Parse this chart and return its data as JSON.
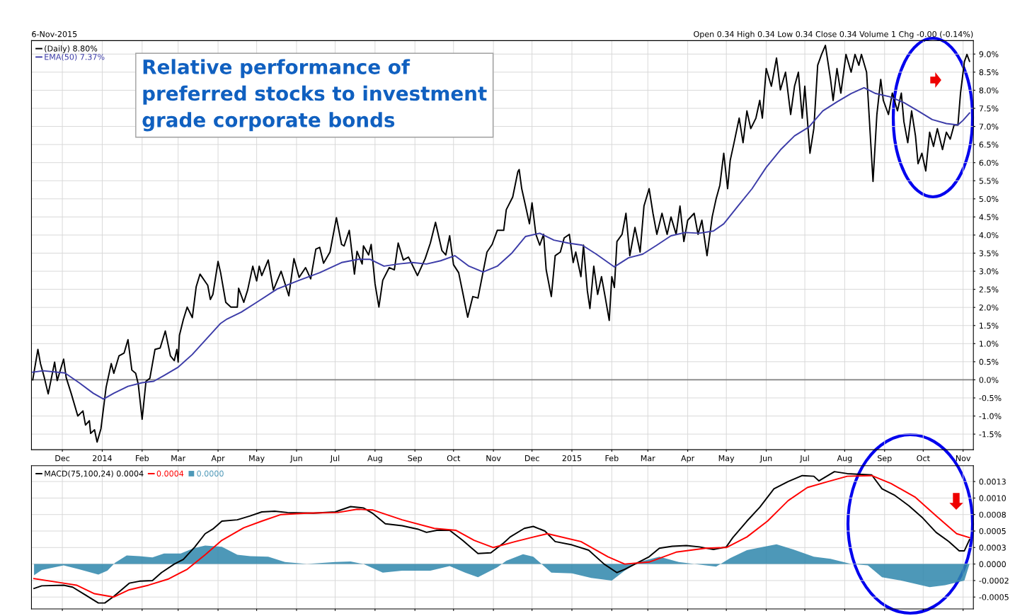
{
  "chart_data": [
    {
      "type": "line",
      "subtitle": "6-Nov-2015",
      "annotations": [
        "Relative performance of\npreferred stocks to investment\ngrade corporate bonds",
        "Open 0.34 High 0.34 Low 0.34 Close 0.34 Volume 1 Chg -0.00 (-0.14%)"
      ],
      "xlim": [
        "2013-11-07",
        "2015-11-09"
      ],
      "xticks": [
        {
          "value": "2013-12-01",
          "label": "Dec"
        },
        {
          "value": "2014-01-01",
          "label": "2014"
        },
        {
          "value": "2014-02-01",
          "label": "Feb"
        },
        {
          "value": "2014-03-01",
          "label": "Mar"
        },
        {
          "value": "2014-04-01",
          "label": "Apr"
        },
        {
          "value": "2014-05-01",
          "label": "May"
        },
        {
          "value": "2014-06-01",
          "label": "Jun"
        },
        {
          "value": "2014-07-01",
          "label": "Jul"
        },
        {
          "value": "2014-08-01",
          "label": "Aug"
        },
        {
          "value": "2014-09-01",
          "label": "Sep"
        },
        {
          "value": "2014-10-01",
          "label": "Oct"
        },
        {
          "value": "2014-11-01",
          "label": "Nov"
        },
        {
          "value": "2014-12-01",
          "label": "Dec"
        },
        {
          "value": "2015-01-01",
          "label": "2015"
        },
        {
          "value": "2015-02-01",
          "label": "Feb"
        },
        {
          "value": "2015-03-01",
          "label": "Mar"
        },
        {
          "value": "2015-04-01",
          "label": "Apr"
        },
        {
          "value": "2015-05-01",
          "label": "May"
        },
        {
          "value": "2015-06-01",
          "label": "Jun"
        },
        {
          "value": "2015-07-01",
          "label": "Jul"
        },
        {
          "value": "2015-08-01",
          "label": "Aug"
        },
        {
          "value": "2015-09-01",
          "label": "Sep"
        },
        {
          "value": "2015-10-01",
          "label": "Oct"
        },
        {
          "value": "2015-11-01",
          "label": "Nov"
        }
      ],
      "ylim": [
        -1.93,
        9.37
      ],
      "yticks": [
        {
          "value": -1.5,
          "label": "-1.5%"
        },
        {
          "value": -1.0,
          "label": "-1.0%"
        },
        {
          "value": -0.5,
          "label": "-0.5%"
        },
        {
          "value": 0.0,
          "label": "0.0%"
        },
        {
          "value": 0.5,
          "label": "0.5%"
        },
        {
          "value": 1.0,
          "label": "1.0%"
        },
        {
          "value": 1.5,
          "label": "1.5%"
        },
        {
          "value": 2.0,
          "label": "2.0%"
        },
        {
          "value": 2.5,
          "label": "2.5%"
        },
        {
          "value": 3.0,
          "label": "3.0%"
        },
        {
          "value": 3.5,
          "label": "3.5%"
        },
        {
          "value": 4.0,
          "label": "4.0%"
        },
        {
          "value": 4.5,
          "label": "4.5%"
        },
        {
          "value": 5.0,
          "label": "5.0%"
        },
        {
          "value": 5.5,
          "label": "5.5%"
        },
        {
          "value": 6.0,
          "label": "6.0%"
        },
        {
          "value": 6.5,
          "label": "6.5%"
        },
        {
          "value": 7.0,
          "label": "7.0%"
        },
        {
          "value": 7.5,
          "label": "7.5%"
        },
        {
          "value": 8.0,
          "label": "8.0%"
        },
        {
          "value": 8.5,
          "label": "8.5%"
        },
        {
          "value": 9.0,
          "label": "9.0%"
        }
      ],
      "grid": true,
      "legend": "top left",
      "ref_lines": [
        {
          "axis": "y",
          "value": 0,
          "color": "#808080"
        }
      ],
      "series": [
        {
          "name": "(Daily) 8.80%",
          "color": "#000000",
          "x": [
            "2013-11-08",
            "2013-11-12",
            "2013-11-14",
            "2013-11-17",
            "2013-11-20",
            "2013-11-25",
            "2013-11-27",
            "2013-12-02",
            "2013-12-04",
            "2013-12-08",
            "2013-12-13",
            "2013-12-17",
            "2013-12-19",
            "2013-12-22",
            "2013-12-23",
            "2013-12-26",
            "2013-12-28",
            "2013-12-31",
            "2014-01-04",
            "2014-01-08",
            "2014-01-10",
            "2014-01-14",
            "2014-01-18",
            "2014-01-21",
            "2014-01-24",
            "2014-01-27",
            "2014-01-29",
            "2014-02-01",
            "2014-02-04",
            "2014-02-07",
            "2014-02-11",
            "2014-02-15",
            "2014-02-19",
            "2014-02-23",
            "2014-02-26",
            "2014-02-28",
            "2014-03-01",
            "2014-03-02",
            "2014-03-05",
            "2014-03-08",
            "2014-03-12",
            "2014-03-15",
            "2014-03-18",
            "2014-03-24",
            "2014-03-26",
            "2014-03-28",
            "2014-04-01",
            "2014-04-03",
            "2014-04-07",
            "2014-04-11",
            "2014-04-16",
            "2014-04-17",
            "2014-04-21",
            "2014-04-24",
            "2014-04-28",
            "2014-05-01",
            "2014-05-03",
            "2014-05-05",
            "2014-05-10",
            "2014-05-14",
            "2014-05-20",
            "2014-05-26",
            "2014-05-30",
            "2014-06-03",
            "2014-06-08",
            "2014-06-12",
            "2014-06-16",
            "2014-06-19",
            "2014-06-22",
            "2014-06-27",
            "2014-07-02",
            "2014-07-06",
            "2014-07-08",
            "2014-07-12",
            "2014-07-16",
            "2014-07-18",
            "2014-07-22",
            "2014-07-23",
            "2014-07-27",
            "2014-07-29",
            "2014-08-01",
            "2014-08-04",
            "2014-08-07",
            "2014-08-12",
            "2014-08-16",
            "2014-08-19",
            "2014-08-23",
            "2014-08-27",
            "2014-09-03",
            "2014-09-09",
            "2014-09-13",
            "2014-09-17",
            "2014-09-22",
            "2014-09-25",
            "2014-09-28",
            "2014-10-01",
            "2014-10-05",
            "2014-10-08",
            "2014-10-12",
            "2014-10-16",
            "2014-10-20",
            "2014-10-27",
            "2014-10-31",
            "2014-11-04",
            "2014-11-09",
            "2014-11-11",
            "2014-11-16",
            "2014-11-20",
            "2014-11-21",
            "2014-11-23",
            "2014-11-26",
            "2014-11-29",
            "2014-12-01",
            "2014-12-04",
            "2014-12-07",
            "2014-12-10",
            "2014-12-12",
            "2014-12-16",
            "2014-12-19",
            "2014-12-23",
            "2014-12-26",
            "2014-12-30",
            "2015-01-02",
            "2015-01-04",
            "2015-01-08",
            "2015-01-10",
            "2015-01-13",
            "2015-01-15",
            "2015-01-18",
            "2015-01-21",
            "2015-01-24",
            "2015-01-27",
            "2015-01-30",
            "2015-02-01",
            "2015-02-03",
            "2015-02-05",
            "2015-02-09",
            "2015-02-12",
            "2015-02-15",
            "2015-02-19",
            "2015-02-23",
            "2015-02-26",
            "2015-03-02",
            "2015-03-05",
            "2015-03-08",
            "2015-03-12",
            "2015-03-16",
            "2015-03-19",
            "2015-03-23",
            "2015-03-26",
            "2015-03-29",
            "2015-04-01",
            "2015-04-06",
            "2015-04-09",
            "2015-04-12",
            "2015-04-16",
            "2015-04-20",
            "2015-04-23",
            "2015-04-26",
            "2015-04-29",
            "2015-05-02",
            "2015-05-04",
            "2015-05-07",
            "2015-05-11",
            "2015-05-14",
            "2015-05-17",
            "2015-05-20",
            "2015-05-24",
            "2015-05-27",
            "2015-05-29",
            "2015-06-01",
            "2015-06-05",
            "2015-06-09",
            "2015-06-12",
            "2015-06-16",
            "2015-06-20",
            "2015-06-23",
            "2015-06-26",
            "2015-06-29",
            "2015-07-01",
            "2015-07-05",
            "2015-07-08",
            "2015-07-11",
            "2015-07-14",
            "2015-07-17",
            "2015-07-21",
            "2015-07-23",
            "2015-07-26",
            "2015-07-29",
            "2015-08-02",
            "2015-08-06",
            "2015-08-09",
            "2015-08-12",
            "2015-08-14",
            "2015-08-18",
            "2015-08-23",
            "2015-08-26",
            "2015-08-29",
            "2015-08-31",
            "2015-09-04",
            "2015-09-07",
            "2015-09-11",
            "2015-09-14",
            "2015-09-16",
            "2015-09-19",
            "2015-09-22",
            "2015-09-25",
            "2015-09-27",
            "2015-09-30",
            "2015-10-03",
            "2015-10-06",
            "2015-10-09",
            "2015-10-12",
            "2015-10-16",
            "2015-10-19",
            "2015-10-22",
            "2015-10-25",
            "2015-10-28",
            "2015-10-30",
            "2015-11-02",
            "2015-11-04",
            "2015-11-06"
          ],
          "values": [
            0.0,
            0.84,
            0.45,
            0.06,
            -0.39,
            0.49,
            -0.02,
            0.57,
            0.06,
            -0.39,
            -1.0,
            -0.86,
            -1.25,
            -1.13,
            -1.48,
            -1.38,
            -1.72,
            -1.35,
            -0.21,
            0.45,
            0.18,
            0.66,
            0.74,
            1.11,
            0.27,
            0.18,
            -0.12,
            -1.09,
            -0.04,
            0.04,
            0.84,
            0.88,
            1.35,
            0.66,
            0.53,
            0.84,
            0.49,
            1.23,
            1.66,
            2.01,
            1.72,
            2.57,
            2.92,
            2.61,
            2.22,
            2.36,
            3.27,
            2.96,
            2.14,
            2.01,
            2.01,
            2.53,
            2.14,
            2.48,
            3.14,
            2.73,
            3.14,
            2.88,
            3.31,
            2.48,
            3.0,
            2.32,
            3.35,
            2.83,
            3.1,
            2.79,
            3.61,
            3.66,
            3.22,
            3.53,
            4.48,
            3.74,
            3.7,
            4.13,
            2.92,
            3.55,
            3.2,
            3.7,
            3.45,
            3.74,
            2.65,
            2.01,
            2.75,
            3.1,
            3.04,
            3.78,
            3.31,
            3.39,
            2.88,
            3.35,
            3.78,
            4.35,
            3.57,
            3.45,
            3.98,
            3.18,
            2.96,
            2.44,
            1.73,
            2.3,
            2.26,
            3.53,
            3.74,
            4.13,
            4.13,
            4.7,
            5.05,
            5.75,
            5.81,
            5.28,
            4.8,
            4.31,
            4.89,
            4.02,
            3.72,
            4.02,
            3.04,
            2.3,
            3.43,
            3.53,
            3.92,
            4.02,
            3.24,
            3.53,
            2.85,
            3.72,
            2.46,
            1.97,
            3.14,
            2.36,
            2.85,
            2.26,
            1.64,
            2.85,
            2.55,
            3.82,
            4.02,
            4.6,
            3.43,
            4.21,
            3.53,
            4.8,
            5.28,
            4.6,
            4.02,
            4.6,
            4.02,
            4.5,
            4.02,
            4.8,
            3.82,
            4.41,
            4.6,
            4.02,
            4.41,
            3.43,
            4.5,
            4.99,
            5.38,
            6.26,
            5.28,
            6.06,
            6.55,
            7.23,
            6.55,
            7.43,
            6.94,
            7.23,
            7.72,
            7.23,
            8.6,
            8.11,
            8.89,
            8.01,
            8.5,
            7.33,
            8.11,
            8.5,
            7.23,
            8.11,
            6.26,
            6.94,
            8.69,
            8.99,
            9.24,
            8.3,
            7.72,
            8.6,
            7.92,
            8.99,
            8.5,
            8.99,
            8.69,
            8.99,
            8.5,
            5.48,
            7.33,
            8.3,
            7.72,
            7.33,
            7.92,
            7.43,
            7.92,
            7.13,
            6.55,
            7.43,
            6.74,
            5.97,
            6.26,
            5.77,
            6.84,
            6.45,
            6.94,
            6.36,
            6.84,
            6.65,
            7.04,
            7.04,
            7.92,
            8.79,
            8.99,
            8.8
          ]
        },
        {
          "name": "EMA(50) 7.37%",
          "color": "#3c3ca8",
          "x": [
            "2013-11-08",
            "2013-11-16",
            "2013-12-03",
            "2013-12-14",
            "2013-12-25",
            "2014-01-02",
            "2014-01-10",
            "2014-01-21",
            "2014-02-01",
            "2014-02-10",
            "2014-02-18",
            "2014-03-01",
            "2014-03-12",
            "2014-03-23",
            "2014-04-03",
            "2014-04-08",
            "2014-04-19",
            "2014-05-01",
            "2014-05-17",
            "2014-06-03",
            "2014-06-19",
            "2014-07-06",
            "2014-07-19",
            "2014-07-28",
            "2014-08-08",
            "2014-08-19",
            "2014-08-30",
            "2014-09-10",
            "2014-09-21",
            "2014-10-02",
            "2014-10-13",
            "2014-10-24",
            "2014-11-04",
            "2014-11-15",
            "2014-11-26",
            "2014-12-07",
            "2014-12-18",
            "2014-12-29",
            "2015-01-09",
            "2015-01-20",
            "2015-02-03",
            "2015-02-14",
            "2015-02-25",
            "2015-03-08",
            "2015-03-19",
            "2015-03-30",
            "2015-04-10",
            "2015-04-21",
            "2015-04-29",
            "2015-05-10",
            "2015-05-21",
            "2015-06-01",
            "2015-06-12",
            "2015-06-23",
            "2015-07-04",
            "2015-07-15",
            "2015-07-26",
            "2015-08-06",
            "2015-08-16",
            "2015-08-25",
            "2015-09-05",
            "2015-09-16",
            "2015-09-27",
            "2015-10-08",
            "2015-10-19",
            "2015-10-28",
            "2015-11-01",
            "2015-11-06"
          ],
          "values": [
            0.21,
            0.25,
            0.19,
            -0.08,
            -0.37,
            -0.53,
            -0.37,
            -0.18,
            -0.08,
            -0.04,
            0.12,
            0.35,
            0.7,
            1.13,
            1.56,
            1.68,
            1.87,
            2.14,
            2.51,
            2.75,
            2.96,
            3.24,
            3.33,
            3.33,
            3.14,
            3.2,
            3.24,
            3.2,
            3.29,
            3.43,
            3.14,
            2.98,
            3.14,
            3.49,
            3.96,
            4.05,
            3.86,
            3.78,
            3.72,
            3.47,
            3.12,
            3.37,
            3.47,
            3.72,
            3.98,
            4.07,
            4.05,
            4.11,
            4.31,
            4.8,
            5.28,
            5.87,
            6.35,
            6.74,
            6.98,
            7.43,
            7.68,
            7.91,
            8.07,
            7.91,
            7.82,
            7.66,
            7.43,
            7.19,
            7.08,
            7.04,
            7.17,
            7.37
          ]
        }
      ]
    },
    {
      "type": "line",
      "tick_labels": "y",
      "grid": true,
      "legend": "top left",
      "xlim": [
        "2013-11-07",
        "2015-11-09"
      ],
      "xticks": [
        {
          "value": "2013-12-01",
          "label": null
        },
        {
          "value": "2014-01-01",
          "label": null
        },
        {
          "value": "2014-02-01",
          "label": null
        },
        {
          "value": "2014-03-01",
          "label": null
        },
        {
          "value": "2014-04-01",
          "label": null
        },
        {
          "value": "2014-05-01",
          "label": null
        },
        {
          "value": "2014-06-01",
          "label": null
        },
        {
          "value": "2014-07-01",
          "label": null
        },
        {
          "value": "2014-08-01",
          "label": null
        },
        {
          "value": "2014-09-01",
          "label": null
        },
        {
          "value": "2014-10-01",
          "label": null
        },
        {
          "value": "2014-11-01",
          "label": null
        },
        {
          "value": "2014-12-01",
          "label": null
        },
        {
          "value": "2015-01-01",
          "label": null
        },
        {
          "value": "2015-02-01",
          "label": null
        },
        {
          "value": "2015-03-01",
          "label": null
        },
        {
          "value": "2015-04-01",
          "label": null
        },
        {
          "value": "2015-05-01",
          "label": null
        },
        {
          "value": "2015-06-01",
          "label": null
        },
        {
          "value": "2015-07-01",
          "label": null
        },
        {
          "value": "2015-08-01",
          "label": null
        },
        {
          "value": "2015-09-01",
          "label": null
        },
        {
          "value": "2015-10-01",
          "label": null
        },
        {
          "value": "2015-11-01",
          "label": null
        }
      ],
      "ylim": [
        -0.00068,
        0.00149
      ],
      "yticks": [
        {
          "value": -0.0005,
          "label": "-0.0005"
        },
        {
          "value": -0.00025,
          "label": "-0.0002"
        },
        {
          "value": 0,
          "label": "0.0000"
        },
        {
          "value": 0.00025,
          "label": "0.0003"
        },
        {
          "value": 0.0005,
          "label": "0.0005"
        },
        {
          "value": 0.00075,
          "label": "0.0008"
        },
        {
          "value": 0.001,
          "label": "0.0010"
        },
        {
          "value": 0.00125,
          "label": "0.0013"
        }
      ],
      "series": [
        {
          "name": "0.0000",
          "type": "area",
          "color": "#2e86ab",
          "x": [
            "2013-11-09",
            "2013-11-15",
            "2013-12-02",
            "2013-12-14",
            "2013-12-29",
            "2014-01-05",
            "2014-01-11",
            "2014-01-20",
            "2014-01-30",
            "2014-02-09",
            "2014-02-18",
            "2014-03-03",
            "2014-03-13",
            "2014-03-22",
            "2014-04-04",
            "2014-04-16",
            "2014-04-26",
            "2014-05-10",
            "2014-05-23",
            "2014-06-09",
            "2014-07-01",
            "2014-07-13",
            "2014-07-23",
            "2014-08-07",
            "2014-08-22",
            "2014-09-13",
            "2014-09-28",
            "2014-10-10",
            "2014-10-20",
            "2014-11-04",
            "2014-11-11",
            "2014-11-24",
            "2014-12-02",
            "2014-12-16",
            "2015-01-01",
            "2015-01-16",
            "2015-02-01",
            "2015-02-11",
            "2015-02-22",
            "2015-03-10",
            "2015-03-25",
            "2015-04-15",
            "2015-04-23",
            "2015-05-04",
            "2015-05-17",
            "2015-05-30",
            "2015-06-09",
            "2015-06-22",
            "2015-07-08",
            "2015-07-21",
            "2015-08-06",
            "2015-08-19",
            "2015-08-30",
            "2015-09-14",
            "2015-10-06",
            "2015-10-18",
            "2015-11-02",
            "2015-11-06"
          ],
          "values": [
            -0.00017,
            -9e-05,
            -2e-05,
            -8e-05,
            -0.00016,
            -0.0001,
            2e-05,
            0.00013,
            0.00012,
            0.0001,
            0.00016,
            0.00016,
            0.00024,
            0.00028,
            0.00026,
            0.00014,
            0.00012,
            0.00011,
            3e-05,
            0.0,
            3e-05,
            4e-05,
            0.0,
            -0.00013,
            -0.0001,
            -0.0001,
            -3e-05,
            -0.00013,
            -0.0002,
            -5e-05,
            5e-05,
            0.00015,
            0.00011,
            -0.00013,
            -0.00014,
            -0.00021,
            -0.00025,
            -0.0001,
            3e-05,
            0.00011,
            3e-05,
            -2e-05,
            -4e-05,
            9e-05,
            0.00021,
            0.00026,
            0.0003,
            0.00022,
            0.00011,
            8e-05,
            0.0,
            -2e-05,
            -0.0002,
            -0.00025,
            -0.00035,
            -0.00032,
            -0.00025,
            0.0
          ]
        },
        {
          "name": "MACD(75,100,24) 0.0004",
          "color": "#000000",
          "x": [
            "2013-11-09",
            "2013-11-15",
            "2013-12-02",
            "2013-12-09",
            "2013-12-19",
            "2013-12-29",
            "2014-01-03",
            "2014-01-10",
            "2014-01-22",
            "2014-01-30",
            "2014-02-09",
            "2014-02-16",
            "2014-02-26",
            "2014-03-05",
            "2014-03-14",
            "2014-03-22",
            "2014-03-28",
            "2014-04-04",
            "2014-04-16",
            "2014-04-26",
            "2014-05-05",
            "2014-05-15",
            "2014-05-25",
            "2014-06-14",
            "2014-07-01",
            "2014-07-13",
            "2014-07-23",
            "2014-07-30",
            "2014-08-09",
            "2014-08-22",
            "2014-09-03",
            "2014-09-10",
            "2014-09-18",
            "2014-09-28",
            "2014-10-08",
            "2014-10-20",
            "2014-10-30",
            "2014-11-09",
            "2014-11-14",
            "2014-11-25",
            "2014-12-02",
            "2014-12-11",
            "2014-12-19",
            "2015-01-01",
            "2015-01-14",
            "2015-01-26",
            "2015-02-05",
            "2015-02-11",
            "2015-02-22",
            "2015-03-02",
            "2015-03-10",
            "2015-03-20",
            "2015-03-31",
            "2015-04-10",
            "2015-04-21",
            "2015-05-01",
            "2015-05-06",
            "2015-05-17",
            "2015-05-27",
            "2015-06-07",
            "2015-06-18",
            "2015-06-29",
            "2015-07-08",
            "2015-07-12",
            "2015-07-24",
            "2015-08-03",
            "2015-08-22",
            "2015-08-30",
            "2015-09-09",
            "2015-09-20",
            "2015-09-30",
            "2015-10-11",
            "2015-10-21",
            "2015-10-29",
            "2015-11-02",
            "2015-11-06"
          ],
          "values": [
            -0.00037,
            -0.00033,
            -0.00032,
            -0.00035,
            -0.00047,
            -0.00059,
            -0.00059,
            -0.00049,
            -0.00029,
            -0.00026,
            -0.00025,
            -0.00013,
            0.0,
            7e-05,
            0.00026,
            0.00046,
            0.00053,
            0.00065,
            0.00067,
            0.00073,
            0.00079,
            0.0008,
            0.00078,
            0.00077,
            0.00079,
            0.00087,
            0.00085,
            0.00077,
            0.00061,
            0.00058,
            0.00053,
            0.00048,
            0.00051,
            0.00051,
            0.00036,
            0.00016,
            0.00017,
            0.00032,
            0.00041,
            0.00054,
            0.00057,
            0.0005,
            0.00034,
            0.00029,
            0.00021,
            0.0,
            -0.00013,
            -8e-05,
            3e-05,
            0.00011,
            0.00024,
            0.00027,
            0.00028,
            0.00026,
            0.00022,
            0.00026,
            0.0004,
            0.00065,
            0.00086,
            0.00114,
            0.00125,
            0.00134,
            0.00133,
            0.00126,
            0.0014,
            0.00137,
            0.00135,
            0.00114,
            0.00104,
            0.00088,
            0.00071,
            0.00048,
            0.00034,
            0.0002,
            0.0002,
            0.00037
          ]
        },
        {
          "name": "0.0004",
          "color": "#ff0000",
          "x": [
            "2013-11-09",
            "2013-12-02",
            "2013-12-12",
            "2013-12-26",
            "2014-01-10",
            "2014-01-22",
            "2014-02-06",
            "2014-02-21",
            "2014-03-08",
            "2014-03-22",
            "2014-04-04",
            "2014-04-21",
            "2014-05-05",
            "2014-05-20",
            "2014-06-09",
            "2014-07-03",
            "2014-07-18",
            "2014-07-30",
            "2014-08-22",
            "2014-09-16",
            "2014-10-03",
            "2014-10-17",
            "2014-11-01",
            "2014-11-18",
            "2014-11-30",
            "2014-12-13",
            "2015-01-08",
            "2015-01-29",
            "2015-02-11",
            "2015-03-02",
            "2015-03-23",
            "2015-04-15",
            "2015-05-01",
            "2015-05-17",
            "2015-06-02",
            "2015-06-18",
            "2015-07-03",
            "2015-07-19",
            "2015-08-03",
            "2015-08-22",
            "2015-09-06",
            "2015-09-25",
            "2015-10-11",
            "2015-10-27",
            "2015-11-06"
          ],
          "values": [
            -0.00022,
            -0.00029,
            -0.00032,
            -0.00045,
            -0.0005,
            -0.00039,
            -0.00032,
            -0.00023,
            -8e-05,
            0.00014,
            0.00036,
            0.00055,
            0.00065,
            0.00075,
            0.00077,
            0.00078,
            0.00083,
            0.00082,
            0.00067,
            0.00054,
            0.00051,
            0.00036,
            0.00025,
            0.00034,
            0.0004,
            0.00046,
            0.00034,
            0.00011,
            0.0,
            3e-05,
            0.00018,
            0.00024,
            0.00025,
            0.00041,
            0.00065,
            0.00096,
            0.00116,
            0.00125,
            0.00133,
            0.00134,
            0.00122,
            0.00101,
            0.00073,
            0.00046,
            0.0004
          ]
        }
      ]
    }
  ]
}
